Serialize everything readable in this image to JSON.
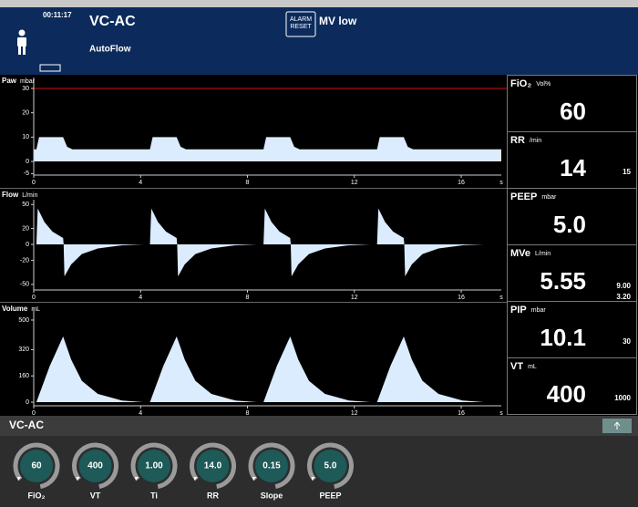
{
  "header": {
    "time": "00:11:17",
    "mode": "VC-AC",
    "submode": "AutoFlow",
    "alarm_button": [
      "ALARM",
      "RESET"
    ],
    "alarm": "MV low"
  },
  "chart_data": [
    {
      "type": "area",
      "title": "Paw",
      "unit": "mbar",
      "x_unit": "s",
      "color": "#dcecff",
      "limit_color": "#d01010",
      "limit": 30,
      "x": [
        0,
        0.1,
        0.2,
        1.1,
        1.25,
        1.45,
        4.35,
        4.45,
        5.35,
        5.5,
        5.7,
        8.6,
        8.7,
        9.6,
        9.75,
        9.95,
        12.85,
        12.95,
        13.85,
        14.0,
        14.2,
        17.5
      ],
      "values": [
        5,
        5,
        10,
        10,
        6,
        5,
        5,
        10,
        10,
        6,
        5,
        5,
        10,
        10,
        6,
        5,
        5,
        10,
        10,
        6,
        5,
        5
      ],
      "xlim": [
        0,
        17.5
      ],
      "xticks": [
        0,
        4,
        8,
        12,
        16
      ],
      "ylim": [
        -5.6,
        34.5
      ],
      "yticks": [
        30,
        20,
        10,
        0,
        -5
      ]
    },
    {
      "type": "area",
      "title": "Flow",
      "unit": "L/min",
      "x_unit": "s",
      "color": "#dcecff",
      "x": [
        0.1,
        0.15,
        0.4,
        0.7,
        1.1,
        1.12,
        1.15,
        1.4,
        1.8,
        2.4,
        3.3,
        4.1,
        4.35,
        4.4,
        4.65,
        4.95,
        5.35,
        5.37,
        5.4,
        5.65,
        6.05,
        6.65,
        7.55,
        8.35,
        8.6,
        8.65,
        8.9,
        9.2,
        9.6,
        9.62,
        9.65,
        9.9,
        10.3,
        10.9,
        11.8,
        12.6,
        12.85,
        12.9,
        13.15,
        13.45,
        13.85,
        13.87,
        13.9,
        14.15,
        14.55,
        15.15,
        16.05,
        16.85,
        17.5
      ],
      "values": [
        0,
        45,
        28,
        16,
        8,
        0,
        -40,
        -25,
        -12,
        -5,
        -1,
        0,
        0,
        45,
        28,
        16,
        8,
        0,
        -40,
        -25,
        -12,
        -5,
        -1,
        0,
        0,
        45,
        28,
        16,
        8,
        0,
        -40,
        -25,
        -12,
        -5,
        -1,
        0,
        0,
        45,
        28,
        16,
        8,
        0,
        -40,
        -25,
        -12,
        -5,
        -1,
        0,
        0
      ],
      "xlim": [
        0,
        17.5
      ],
      "xticks": [
        0,
        4,
        8,
        12,
        16
      ],
      "ylim": [
        -57,
        56
      ],
      "yticks": [
        50,
        20,
        0,
        -20,
        -50
      ]
    },
    {
      "type": "area",
      "title": "Volume",
      "unit": "mL",
      "x_unit": "s",
      "color": "#dcecff",
      "x": [
        0.1,
        0.6,
        1.1,
        1.4,
        1.8,
        2.4,
        3.3,
        4.1,
        4.35,
        4.85,
        5.35,
        5.65,
        6.05,
        6.65,
        7.55,
        8.35,
        8.6,
        9.1,
        9.6,
        9.9,
        10.3,
        10.9,
        11.8,
        12.6,
        12.85,
        13.35,
        13.85,
        14.15,
        14.55,
        15.15,
        16.05,
        16.85,
        17.5
      ],
      "values": [
        0,
        220,
        400,
        260,
        130,
        50,
        10,
        0,
        0,
        220,
        400,
        260,
        130,
        50,
        10,
        0,
        0,
        220,
        400,
        260,
        130,
        50,
        10,
        0,
        0,
        220,
        400,
        260,
        130,
        50,
        10,
        0,
        0
      ],
      "xlim": [
        0,
        17.5
      ],
      "xticks": [
        0,
        4,
        8,
        12,
        16
      ],
      "ylim": [
        -22,
        572
      ],
      "yticks": [
        500,
        320,
        160,
        0
      ]
    }
  ],
  "parameters": [
    {
      "label": "FiO₂",
      "unit": "Vol%",
      "value": "60"
    },
    {
      "label": "RR",
      "unit": "/min",
      "value": "14",
      "limits": [
        "15"
      ]
    },
    {
      "label": "PEEP",
      "unit": "mbar",
      "value": "5.0"
    },
    {
      "label": "MVe",
      "unit": "L/min",
      "value": "5.55",
      "limits": [
        "9.00",
        "3.20"
      ]
    },
    {
      "label": "PIP",
      "unit": "mbar",
      "value": "10.1",
      "limits": [
        "30"
      ]
    },
    {
      "label": "VT",
      "unit": "mL",
      "value": "400",
      "limits": [
        "1000"
      ]
    }
  ],
  "controls": {
    "mode": "VC-AC",
    "knobs": [
      {
        "label": "FiO₂",
        "value": "60"
      },
      {
        "label": "VT",
        "value": "400"
      },
      {
        "label": "Ti",
        "value": "1.00"
      },
      {
        "label": "RR",
        "value": "14.0"
      },
      {
        "label": "Slope",
        "value": "0.15"
      },
      {
        "label": "PEEP",
        "value": "5.0"
      }
    ]
  }
}
